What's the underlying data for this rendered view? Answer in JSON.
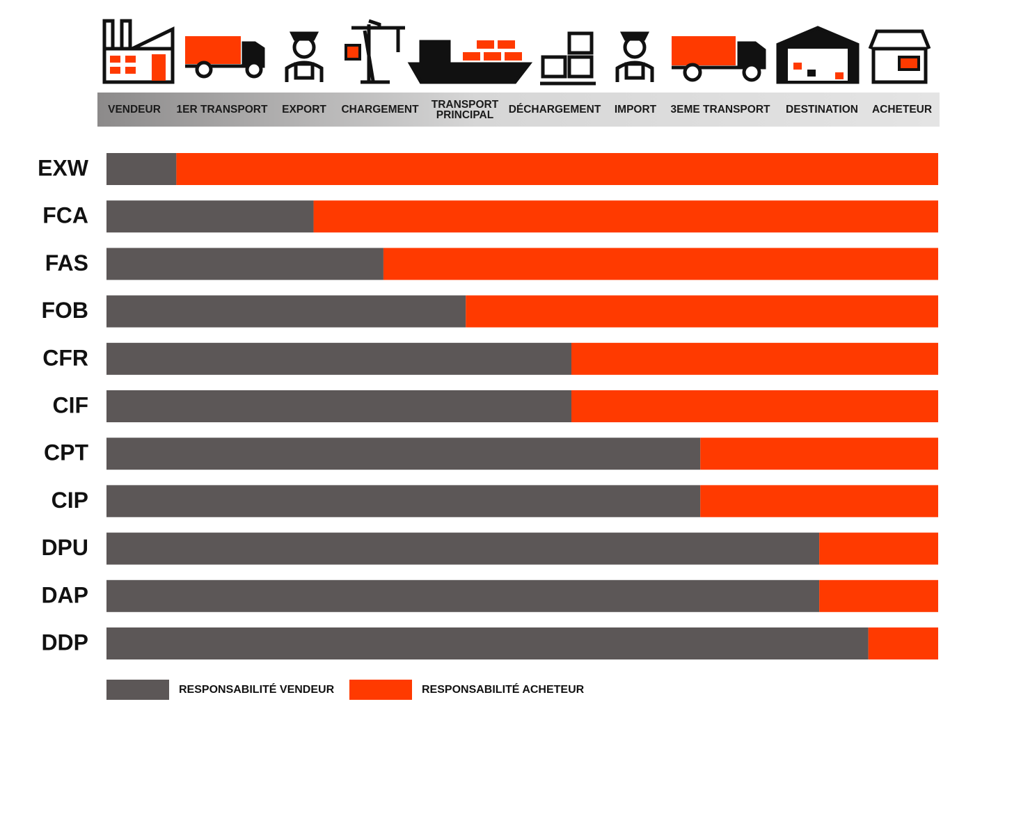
{
  "chart_data": {
    "type": "stacked-bar-horizontal",
    "stages": [
      "VENDEUR",
      "1ER TRANSPORT",
      "EXPORT",
      "CHARGEMENT",
      "TRANSPORT\nPRINCIPAL",
      "DÉCHARGEMENT",
      "IMPORT",
      "3EME TRANSPORT",
      "DESTINATION",
      "ACHETEUR"
    ],
    "categories": [
      "EXW",
      "FCA",
      "FAS",
      "FOB",
      "CFR",
      "CIF",
      "CPT",
      "CIP",
      "DPU",
      "DAP",
      "DDP"
    ],
    "series": [
      {
        "name": "RESPONSABILITÉ VENDEUR",
        "color": "#5c5757",
        "values": [
          8.4,
          24.9,
          33.3,
          43.2,
          55.9,
          55.9,
          71.4,
          71.4,
          85.7,
          85.7,
          91.6
        ]
      },
      {
        "name": "RESPONSABILITÉ ACHETEUR",
        "color": "#ff3a00",
        "values": [
          91.6,
          75.1,
          66.7,
          56.8,
          44.1,
          44.1,
          28.6,
          28.6,
          14.3,
          14.3,
          8.4
        ]
      }
    ],
    "xlim": [
      0,
      100
    ]
  }
}
